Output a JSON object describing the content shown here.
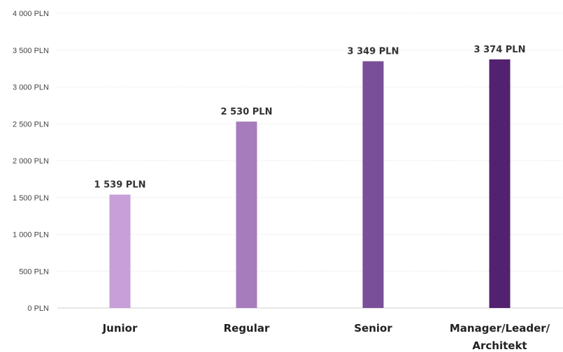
{
  "chart_data": {
    "type": "bar",
    "categories": [
      "Junior",
      "Regular",
      "Senior",
      "Manager/Leader/ Architekt"
    ],
    "category_lines": [
      [
        "Junior"
      ],
      [
        "Regular"
      ],
      [
        "Senior"
      ],
      [
        "Manager/Leader/",
        "Architekt"
      ]
    ],
    "values": [
      1539,
      2530,
      3349,
      3374
    ],
    "data_labels": [
      "1 539 PLN",
      "2 530 PLN",
      "3 349 PLN",
      "3 374 PLN"
    ],
    "bar_colors": [
      "#c89fd8",
      "#a77cbc",
      "#7a4f99",
      "#52216f"
    ],
    "y_ticks": [
      {
        "value": 0,
        "label": "0 PLN"
      },
      {
        "value": 500,
        "label": "500 PLN"
      },
      {
        "value": 1000,
        "label": "1 000 PLN"
      },
      {
        "value": 1500,
        "label": "1 500 PLN"
      },
      {
        "value": 2000,
        "label": "2 000 PLN"
      },
      {
        "value": 2500,
        "label": "2 500 PLN"
      },
      {
        "value": 3000,
        "label": "3 000 PLN"
      },
      {
        "value": 3500,
        "label": "3 500 PLN"
      },
      {
        "value": 4000,
        "label": "4 000 PLN"
      }
    ],
    "ylim": [
      0,
      4000
    ],
    "grid": true,
    "legend": "none",
    "title": "",
    "xlabel": "",
    "ylabel": ""
  }
}
